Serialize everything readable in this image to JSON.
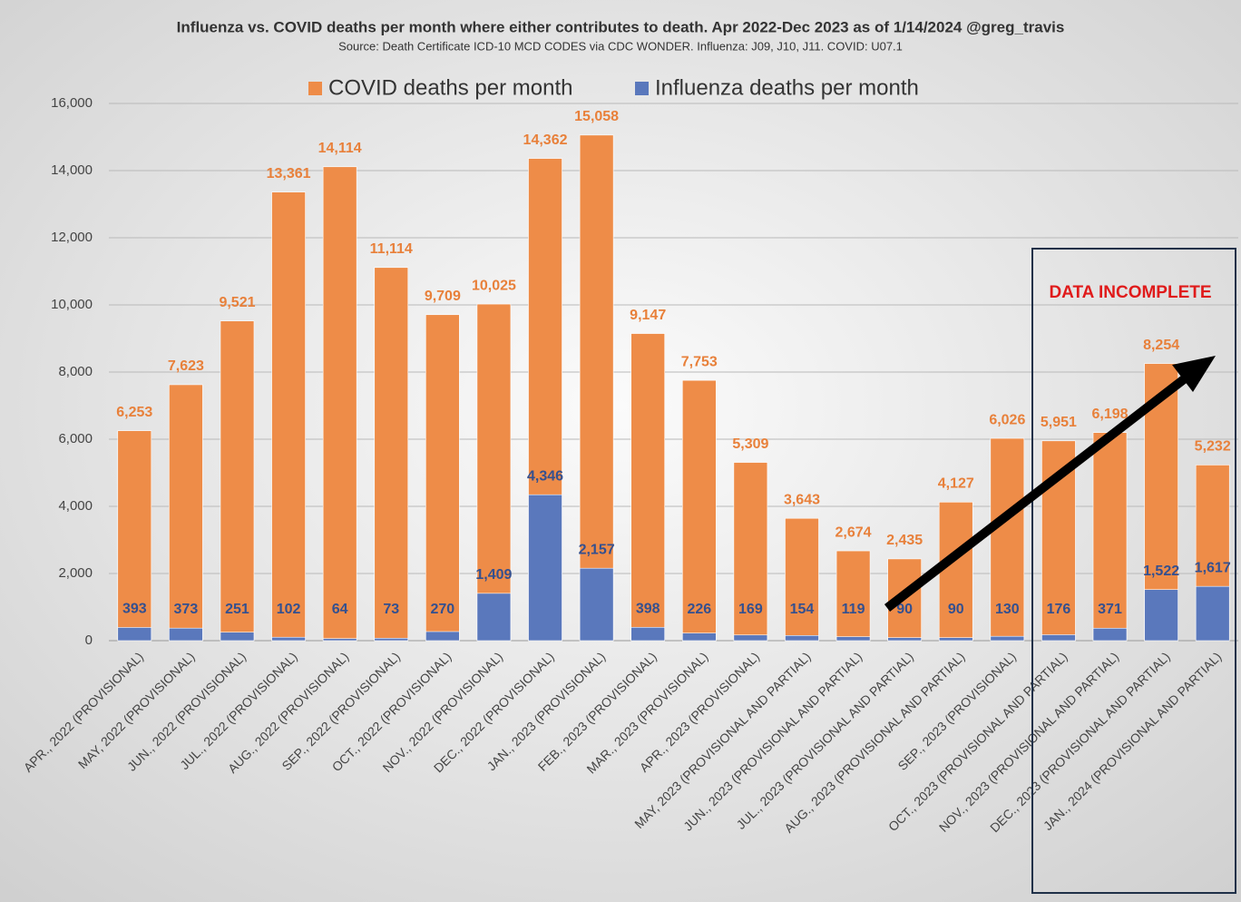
{
  "chart_data": {
    "type": "bar",
    "title": "Influenza vs. COVID deaths per month where either contributes to death.  Apr 2022-Dec 2023 as of 1/14/2024 @greg_travis",
    "subtitle": "Source: Death Certificate ICD-10 MCD CODES via CDC WONDER.  Influenza: J09, J10, J11.  COVID: U07.1",
    "annotation": "DATA INCOMPLETE",
    "categories": [
      "APR., 2022 (PROVISIONAL)",
      "MAY, 2022 (PROVISIONAL)",
      "JUN., 2022 (PROVISIONAL)",
      "JUL., 2022 (PROVISIONAL)",
      "AUG., 2022 (PROVISIONAL)",
      "SEP., 2022 (PROVISIONAL)",
      "OCT., 2022 (PROVISIONAL)",
      "NOV., 2022 (PROVISIONAL)",
      "DEC., 2022 (PROVISIONAL)",
      "JAN., 2023 (PROVISIONAL)",
      "FEB., 2023 (PROVISIONAL)",
      "MAR., 2023 (PROVISIONAL)",
      "APR., 2023 (PROVISIONAL)",
      "MAY, 2023 (PROVISIONAL AND PARTIAL)",
      "JUN., 2023 (PROVISIONAL AND PARTIAL)",
      "JUL., 2023 (PROVISIONAL AND PARTIAL)",
      "AUG., 2023 (PROVISIONAL AND PARTIAL)",
      "SEP., 2023 (PROVISIONAL)",
      "OCT., 2023 (PROVISIONAL AND PARTIAL)",
      "NOV., 2023 (PROVISIONAL AND PARTIAL)",
      "DEC., 2023 (PROVISIONAL AND PARTIAL)",
      "JAN., 2024 (PROVISIONAL AND PARTIAL)"
    ],
    "series": [
      {
        "name": "COVID deaths per month",
        "color": "#ee8c48",
        "values": [
          6253,
          7623,
          9521,
          13361,
          14114,
          11114,
          9709,
          10025,
          14362,
          15058,
          9147,
          7753,
          5309,
          3643,
          2674,
          2435,
          4127,
          6026,
          5951,
          6198,
          8254,
          5232
        ],
        "value_labels": [
          "6,253",
          "7,623",
          "9,521",
          "13,361",
          "14,114",
          "11,114",
          "9,709",
          "10,025",
          "14,362",
          "15,058",
          "9,147",
          "7,753",
          "5,309",
          "3,643",
          "2,674",
          "2,435",
          "4,127",
          "6,026",
          "5,951",
          "6,198",
          "8,254",
          "5,232"
        ]
      },
      {
        "name": "Influenza deaths per month",
        "color": "#5a78bc",
        "values": [
          393,
          373,
          251,
          102,
          64,
          73,
          270,
          1409,
          4346,
          2157,
          398,
          226,
          169,
          154,
          119,
          90,
          90,
          130,
          176,
          371,
          1522,
          1617
        ],
        "value_labels": [
          "393",
          "373",
          "251",
          "102",
          "64",
          "73",
          "270",
          "1,409",
          "4,346",
          "2,157",
          "398",
          "226",
          "169",
          "154",
          "119",
          "90",
          "90",
          "130",
          "176",
          "371",
          "1,522",
          "1,617"
        ]
      }
    ],
    "ylim": [
      0,
      16000
    ],
    "yticks": [
      0,
      {
        "value": 2000,
        "label": "2,000"
      },
      {
        "value": 4000,
        "label": "4,000"
      },
      {
        "value": 6000,
        "label": "6,000"
      },
      {
        "value": 8000,
        "label": "8,000"
      },
      {
        "value": 10000,
        "label": "10,000"
      },
      {
        "value": 12000,
        "label": "12,000"
      },
      {
        "value": 14000,
        "label": "14,000"
      },
      {
        "value": 16000,
        "label": "16,000"
      }
    ],
    "grid": true,
    "legend": "top"
  }
}
